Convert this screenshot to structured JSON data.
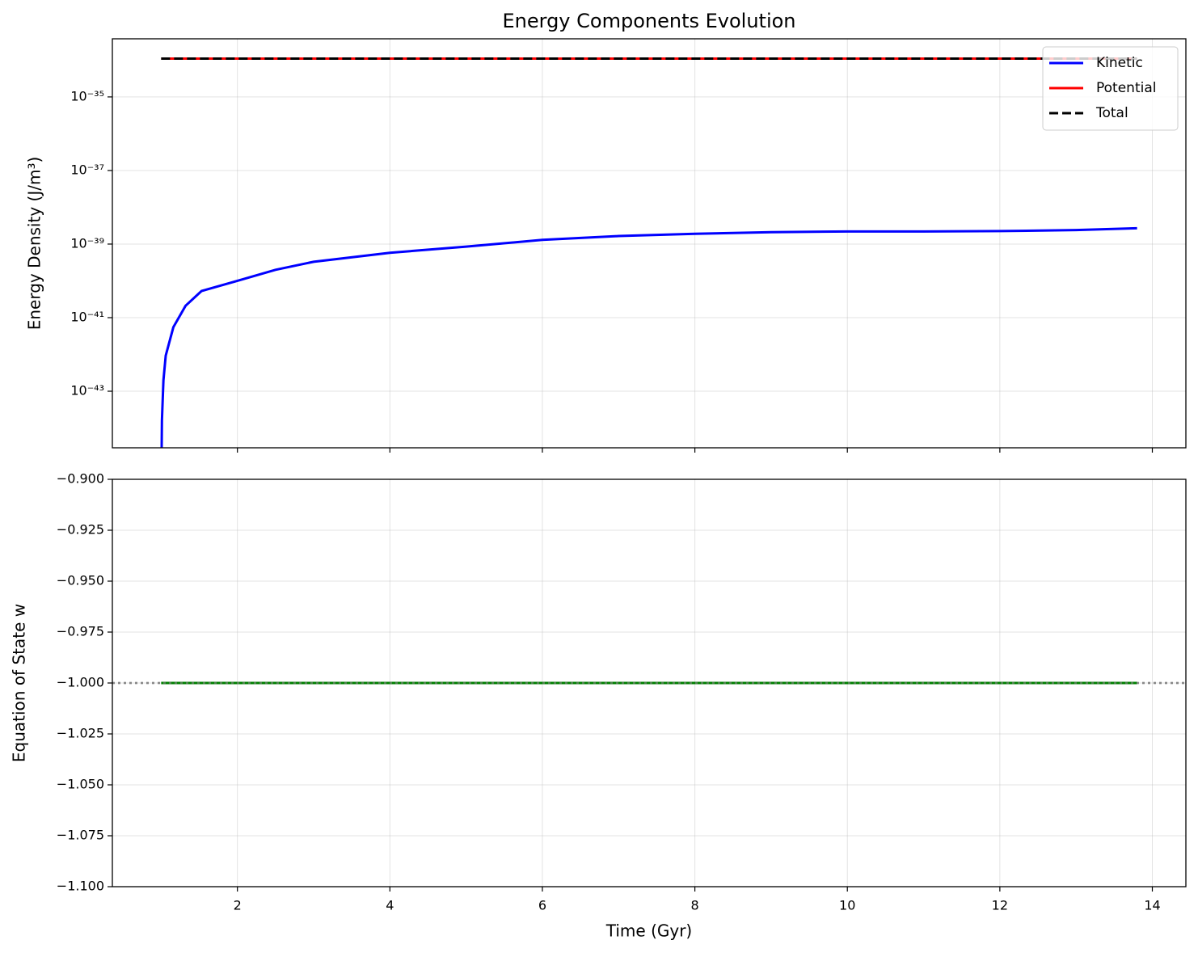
{
  "chart_data": [
    {
      "type": "line",
      "title": "Energy Components Evolution",
      "ylabel": "Energy Density (J/m³)",
      "yscale": "log",
      "grid": true,
      "legend": "upper right",
      "xlim": [
        0.36,
        14.44
      ],
      "xticks": [
        2,
        4,
        6,
        8,
        10,
        12,
        14
      ],
      "show_xtick_labels": false,
      "ylim": [
        2.9e-45,
        3.8e-34
      ],
      "yticks": [
        {
          "value": 1e-35,
          "label": "10⁻³⁵"
        },
        {
          "value": 1e-37,
          "label": "10⁻³⁷"
        },
        {
          "value": 1e-39,
          "label": "10⁻³⁹"
        },
        {
          "value": 1e-41,
          "label": "10⁻⁴¹"
        },
        {
          "value": 1e-43,
          "label": "10⁻⁴³"
        }
      ],
      "series": [
        {
          "name": "Kinetic",
          "color": "#0000ff",
          "style": "solid",
          "x": [
            1.0,
            1.01,
            1.03,
            1.06,
            1.16,
            1.32,
            1.53,
            2,
            2.5,
            3,
            4,
            5,
            6,
            7,
            8,
            9,
            10,
            11,
            12,
            13,
            13.8
          ],
          "values": [
            1e-46,
            1.6e-44,
            2e-43,
            9.3e-43,
            5.5e-42,
            2.1e-41,
            5.3e-41,
            1e-40,
            2e-40,
            3.3e-40,
            5.8e-40,
            8.5e-40,
            1.3e-39,
            1.65e-39,
            1.9e-39,
            2.1e-39,
            2.2e-39,
            2.2e-39,
            2.25e-39,
            2.4e-39,
            2.7e-39
          ]
        },
        {
          "name": "Potential",
          "color": "#ff0000",
          "style": "solid",
          "x": [
            1.0,
            13.8
          ],
          "values": [
            1.1e-34,
            1.1e-34
          ]
        },
        {
          "name": "Total",
          "color": "#000000",
          "style": "dashed",
          "x": [
            1.0,
            13.8
          ],
          "values": [
            1.1e-34,
            1.1e-34
          ]
        }
      ]
    },
    {
      "type": "line",
      "xlabel": "Time (Gyr)",
      "ylabel": "Equation of State w",
      "yscale": "linear",
      "grid": true,
      "xlim": [
        0.36,
        14.44
      ],
      "xticks": [
        2,
        4,
        6,
        8,
        10,
        12,
        14
      ],
      "show_xtick_labels": true,
      "ylim": [
        -1.1,
        -0.9
      ],
      "yticks": [
        {
          "value": -0.9,
          "label": "−0.900"
        },
        {
          "value": -0.925,
          "label": "−0.925"
        },
        {
          "value": -0.95,
          "label": "−0.950"
        },
        {
          "value": -0.975,
          "label": "−0.975"
        },
        {
          "value": -1.0,
          "label": "−1.000"
        },
        {
          "value": -1.025,
          "label": "−1.025"
        },
        {
          "value": -1.05,
          "label": "−1.050"
        },
        {
          "value": -1.075,
          "label": "−1.075"
        },
        {
          "value": -1.1,
          "label": "−1.100"
        }
      ],
      "series": [
        {
          "color": "#008000",
          "style": "solid",
          "x": [
            1.0,
            13.8
          ],
          "values": [
            -1.0,
            -1.0
          ]
        }
      ],
      "reference_line": {
        "y": -1.0,
        "color": "#808080",
        "style": "dotted"
      }
    }
  ]
}
